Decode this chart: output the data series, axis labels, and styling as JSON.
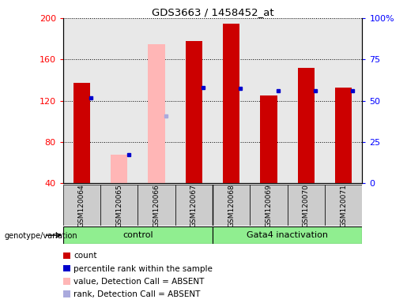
{
  "title": "GDS3663 / 1458452_at",
  "samples": [
    "GSM120064",
    "GSM120065",
    "GSM120066",
    "GSM120067",
    "GSM120068",
    "GSM120069",
    "GSM120070",
    "GSM120071"
  ],
  "red_bars": [
    137,
    null,
    null,
    178,
    195,
    125,
    152,
    133
  ],
  "pink_bars": [
    null,
    68,
    175,
    null,
    null,
    null,
    null,
    null
  ],
  "blue_markers": [
    123,
    68,
    null,
    133,
    132,
    130,
    130,
    130
  ],
  "lightblue_markers": [
    null,
    null,
    105,
    null,
    null,
    null,
    null,
    null
  ],
  "ylim_left": [
    40,
    200
  ],
  "ylim_right": [
    0,
    100
  ],
  "yticks_left": [
    40,
    80,
    120,
    160,
    200
  ],
  "yticks_right": [
    0,
    25,
    50,
    75,
    100
  ],
  "ytick_right_labels": [
    "0",
    "25",
    "50",
    "75",
    "100%"
  ],
  "bar_width": 0.45,
  "red_color": "#CC0000",
  "pink_color": "#FFB6B6",
  "blue_color": "#0000CC",
  "lightblue_color": "#AAAADD",
  "plot_bg": "#E8E8E8",
  "xtick_bg": "#CCCCCC",
  "group_color": "#90EE90",
  "group1_label": "control",
  "group2_label": "Gata4 inactivation",
  "genotype_label": "genotype/variation",
  "legend_items": [
    {
      "label": "count",
      "color": "#CC0000"
    },
    {
      "label": "percentile rank within the sample",
      "color": "#0000CC"
    },
    {
      "label": "value, Detection Call = ABSENT",
      "color": "#FFB6B6"
    },
    {
      "label": "rank, Detection Call = ABSENT",
      "color": "#AAAADD"
    }
  ]
}
